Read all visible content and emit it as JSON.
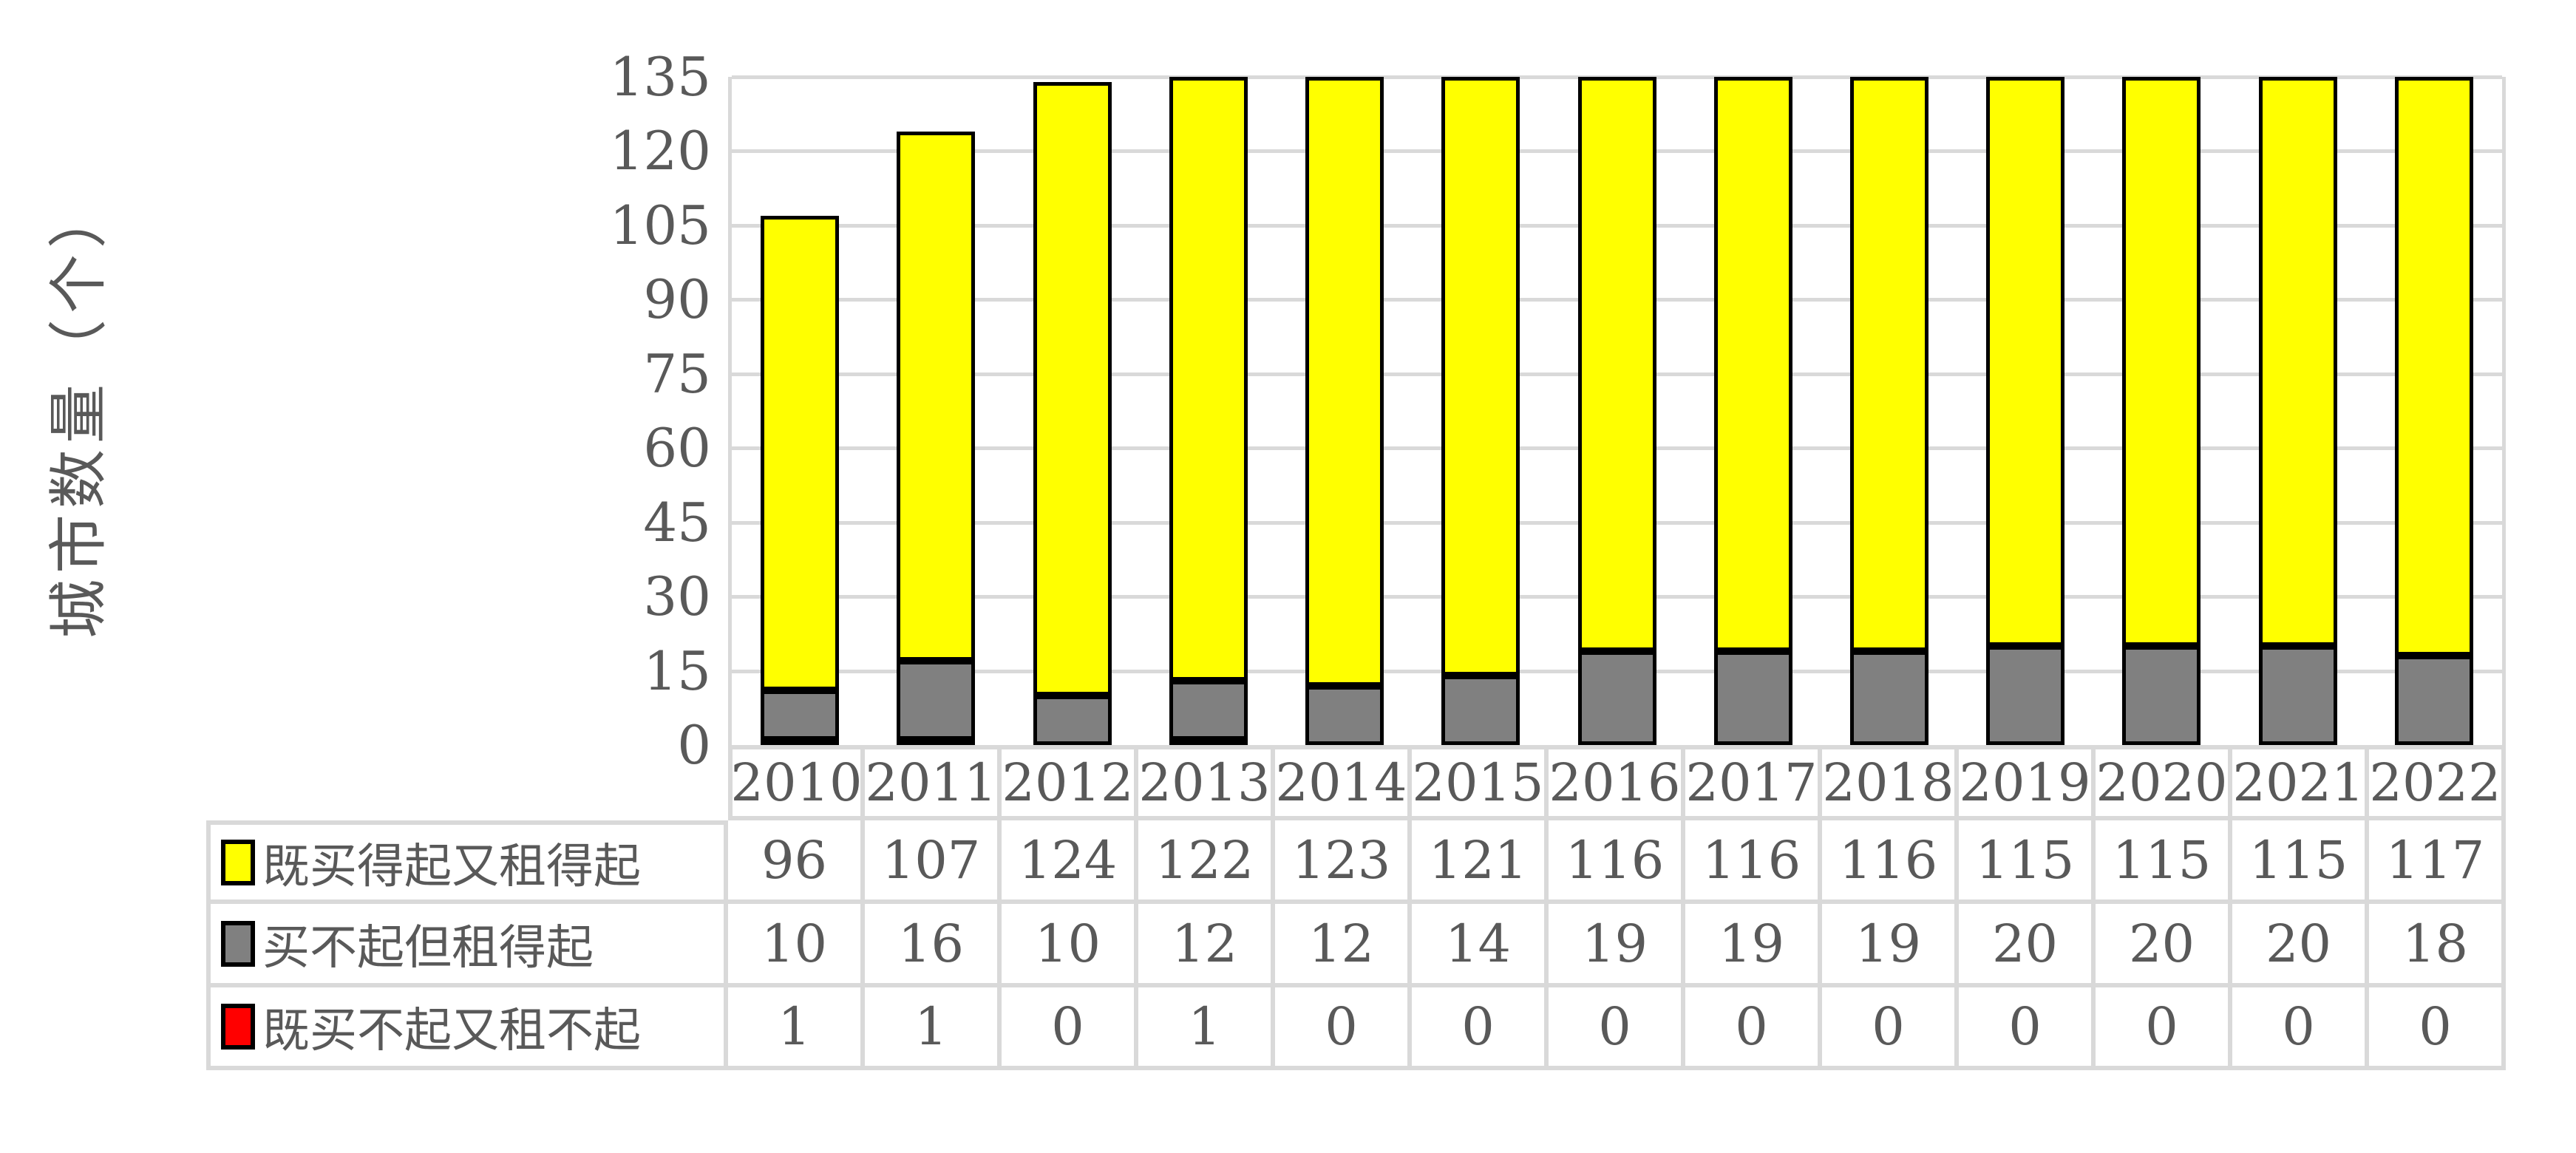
{
  "y_axis_title": "城市数量（个）",
  "chart_data": {
    "type": "bar",
    "stacked": true,
    "categories": [
      "2010",
      "2011",
      "2012",
      "2013",
      "2014",
      "2015",
      "2016",
      "2017",
      "2018",
      "2019",
      "2020",
      "2021",
      "2022"
    ],
    "series": [
      {
        "name": "既买得起又租得起",
        "color": "#FFFF00",
        "values": [
          96,
          107,
          124,
          122,
          123,
          121,
          116,
          116,
          116,
          115,
          115,
          115,
          117
        ]
      },
      {
        "name": "买不起但租得起",
        "color": "#808080",
        "values": [
          10,
          16,
          10,
          12,
          12,
          14,
          19,
          19,
          19,
          20,
          20,
          20,
          18
        ]
      },
      {
        "name": "既买不起又租不起",
        "color": "#FF0000",
        "values": [
          1,
          1,
          0,
          1,
          0,
          0,
          0,
          0,
          0,
          0,
          0,
          0,
          0
        ]
      }
    ],
    "stack_order_bottom_to_top": [
      "既买不起又租不起",
      "买不起但租得起",
      "既买得起又租得起"
    ],
    "ylabel": "城市数量（个）",
    "xlabel": "",
    "ylim": [
      0,
      135
    ],
    "y_ticks": [
      0,
      15,
      30,
      45,
      60,
      75,
      90,
      105,
      120,
      135
    ],
    "grid": true,
    "legend_position": "data-table-left-keys",
    "bar_outline_color": "#000000",
    "gridline_color": "#D9D9D9",
    "text_color": "#595959"
  }
}
